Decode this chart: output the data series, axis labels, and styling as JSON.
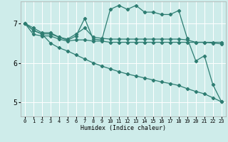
{
  "xlabel": "Humidex (Indice chaleur)",
  "bg_color": "#ceecea",
  "grid_color": "#ffffff",
  "line_color": "#2e7d72",
  "red_line_color": "#c0392b",
  "xlim": [
    -0.5,
    23.5
  ],
  "ylim": [
    4.65,
    7.55
  ],
  "yticks": [
    5,
    6,
    7
  ],
  "xticks": [
    0,
    1,
    2,
    3,
    4,
    5,
    6,
    7,
    8,
    9,
    10,
    11,
    12,
    13,
    14,
    15,
    16,
    17,
    18,
    19,
    20,
    21,
    22,
    23
  ],
  "series": [
    {
      "x": [
        0,
        1,
        2,
        3,
        4,
        5,
        6,
        7,
        8,
        9,
        10,
        11,
        12,
        13,
        14,
        15,
        16,
        17,
        18,
        19,
        20,
        21,
        22,
        23
      ],
      "y": [
        7.0,
        6.88,
        6.76,
        6.76,
        6.65,
        6.57,
        6.68,
        7.12,
        6.6,
        6.58,
        7.35,
        7.45,
        7.35,
        7.45,
        7.28,
        7.28,
        7.22,
        7.22,
        7.32,
        6.62,
        6.05,
        6.18,
        5.45,
        5.02
      ]
    },
    {
      "x": [
        0,
        1,
        2,
        3,
        4,
        5,
        6,
        7,
        8,
        9,
        10,
        11,
        12,
        13,
        14,
        15,
        16,
        17,
        18,
        19,
        20,
        21,
        22,
        23
      ],
      "y": [
        7.0,
        6.72,
        6.68,
        6.68,
        6.6,
        6.55,
        6.58,
        6.58,
        6.55,
        6.55,
        6.52,
        6.52,
        6.52,
        6.52,
        6.52,
        6.52,
        6.52,
        6.52,
        6.52,
        6.52,
        6.52,
        6.52,
        6.52,
        6.52
      ]
    },
    {
      "x": [
        0,
        1,
        2,
        3,
        4,
        5,
        6,
        7,
        8,
        9,
        10,
        11,
        12,
        13,
        14,
        15,
        16,
        17,
        18,
        19,
        20,
        21,
        22,
        23
      ],
      "y": [
        7.0,
        6.82,
        6.73,
        6.73,
        6.65,
        6.6,
        6.73,
        6.88,
        6.65,
        6.62,
        6.6,
        6.6,
        6.6,
        6.6,
        6.6,
        6.6,
        6.6,
        6.6,
        6.6,
        6.58,
        6.52,
        6.52,
        6.5,
        6.48
      ]
    },
    {
      "x": [
        0,
        1,
        2,
        3,
        4,
        5,
        6,
        7,
        8,
        9,
        10,
        11,
        12,
        13,
        14,
        15,
        16,
        17,
        18,
        19,
        20,
        21,
        22,
        23
      ],
      "y": [
        7.0,
        6.82,
        6.73,
        6.5,
        6.38,
        6.3,
        6.2,
        6.1,
        6.0,
        5.92,
        5.85,
        5.78,
        5.72,
        5.67,
        5.62,
        5.57,
        5.52,
        5.48,
        5.43,
        5.35,
        5.28,
        5.22,
        5.12,
        5.02
      ]
    }
  ]
}
